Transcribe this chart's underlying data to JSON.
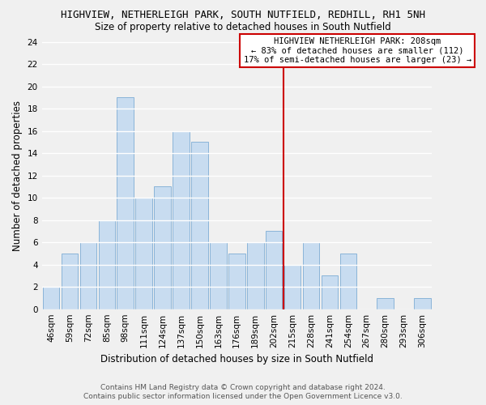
{
  "title": "HIGHVIEW, NETHERLEIGH PARK, SOUTH NUTFIELD, REDHILL, RH1 5NH",
  "subtitle": "Size of property relative to detached houses in South Nutfield",
  "xlabel": "Distribution of detached houses by size in South Nutfield",
  "ylabel": "Number of detached properties",
  "bar_labels": [
    "46sqm",
    "59sqm",
    "72sqm",
    "85sqm",
    "98sqm",
    "111sqm",
    "124sqm",
    "137sqm",
    "150sqm",
    "163sqm",
    "176sqm",
    "189sqm",
    "202sqm",
    "215sqm",
    "228sqm",
    "241sqm",
    "254sqm",
    "267sqm",
    "280sqm",
    "293sqm",
    "306sqm"
  ],
  "bar_values": [
    2,
    5,
    6,
    8,
    19,
    10,
    11,
    16,
    15,
    6,
    5,
    6,
    7,
    4,
    6,
    3,
    5,
    0,
    1,
    0,
    1
  ],
  "bar_color": "#c8dcf0",
  "bar_edge_color": "#8ab4d8",
  "vline_color": "#cc0000",
  "vline_pos": 12.5,
  "ylim": [
    0,
    24
  ],
  "yticks": [
    0,
    2,
    4,
    6,
    8,
    10,
    12,
    14,
    16,
    18,
    20,
    22,
    24
  ],
  "annotation_title": "HIGHVIEW NETHERLEIGH PARK: 208sqm",
  "annotation_line1": "← 83% of detached houses are smaller (112)",
  "annotation_line2": "17% of semi-detached houses are larger (23) →",
  "footer1": "Contains HM Land Registry data © Crown copyright and database right 2024.",
  "footer2": "Contains public sector information licensed under the Open Government Licence v3.0.",
  "bg_color": "#f0f0f0",
  "grid_color": "#d8d8d8",
  "title_fontsize": 9,
  "subtitle_fontsize": 8.5,
  "axis_label_fontsize": 8.5,
  "ylabel_fontsize": 8.5,
  "tick_fontsize": 7.5,
  "footer_fontsize": 6.5,
  "ann_fontsize": 7.5
}
